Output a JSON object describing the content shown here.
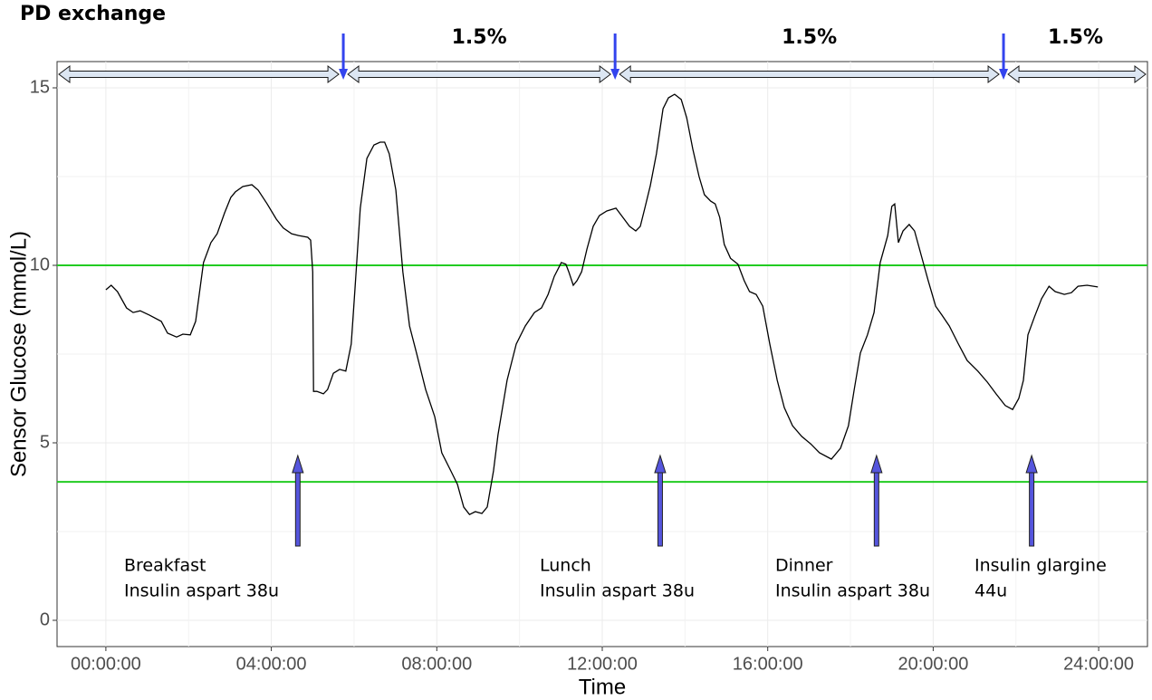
{
  "chart_data": {
    "type": "line",
    "title": "PD exchange",
    "x_label": "Time",
    "y_label": "Sensor Glucose (mmol/L)",
    "xlim": [
      -1.18,
      25.18
    ],
    "ylim": [
      -0.74,
      15.74
    ],
    "xticks": [
      {
        "value": 0,
        "label": "00:00:00"
      },
      {
        "value": 4,
        "label": "04:00:00"
      },
      {
        "value": 8,
        "label": "08:00:00"
      },
      {
        "value": 12,
        "label": "12:00:00"
      },
      {
        "value": 16,
        "label": "16:00:00"
      },
      {
        "value": 20,
        "label": "20:00:00"
      },
      {
        "value": 24,
        "label": "24:00:00"
      }
    ],
    "yticks": [
      0,
      5,
      10,
      15
    ],
    "grid": true,
    "reference_lines": [
      {
        "value": 10,
        "color": "#22cc22"
      },
      {
        "value": 3.9,
        "color": "#22cc22"
      }
    ],
    "pd_exchange": {
      "times": [
        5.74,
        12.31,
        21.7
      ],
      "labels": [
        "1.5%",
        "1.5%",
        "1.5%"
      ],
      "color": "#3344ee"
    },
    "events": [
      {
        "time": 4.64,
        "lines": [
          "Breakfast",
          "Insulin aspart 38u"
        ]
      },
      {
        "time": 13.4,
        "lines": [
          "Lunch",
          "Insulin aspart 38u"
        ]
      },
      {
        "time": 18.63,
        "lines": [
          "Dinner",
          "Insulin aspart 38u"
        ]
      },
      {
        "time": 22.38,
        "lines": [
          "Insulin glargine",
          "44u"
        ]
      }
    ],
    "event_color": "#5555dd",
    "x": [
      0,
      0.13,
      0.28,
      0.5,
      0.66,
      0.83,
      1.05,
      1.34,
      1.49,
      1.71,
      1.86,
      2.04,
      2.17,
      2.36,
      2.54,
      2.69,
      2.87,
      3.02,
      3.13,
      3.31,
      3.53,
      3.68,
      3.9,
      4.12,
      4.29,
      4.49,
      4.66,
      4.88,
      4.95,
      5.0,
      5.02,
      5.1,
      5.26,
      5.36,
      5.5,
      5.65,
      5.8,
      5.93,
      6.02,
      6.15,
      6.31,
      6.48,
      6.63,
      6.74,
      6.85,
      7.01,
      7.18,
      7.34,
      7.51,
      7.73,
      7.95,
      8.12,
      8.34,
      8.5,
      8.65,
      8.79,
      8.93,
      9.09,
      9.22,
      9.37,
      9.48,
      9.7,
      9.92,
      10.14,
      10.36,
      10.53,
      10.69,
      10.84,
      11.01,
      11.12,
      11.19,
      11.3,
      11.39,
      11.5,
      11.63,
      11.78,
      11.93,
      12.11,
      12.33,
      12.5,
      12.66,
      12.81,
      12.92,
      13.03,
      13.16,
      13.31,
      13.47,
      13.6,
      13.75,
      13.91,
      14.04,
      14.19,
      14.34,
      14.47,
      14.62,
      14.73,
      14.84,
      14.95,
      15.1,
      15.28,
      15.43,
      15.56,
      15.72,
      15.88,
      16.05,
      16.23,
      16.4,
      16.6,
      16.82,
      17.04,
      17.25,
      17.54,
      17.76,
      17.95,
      18.09,
      18.24,
      18.41,
      18.57,
      18.72,
      18.9,
      19.0,
      19.07,
      19.16,
      19.27,
      19.42,
      19.55,
      19.71,
      19.88,
      20.06,
      20.21,
      20.39,
      20.61,
      20.82,
      21.08,
      21.31,
      21.52,
      21.74,
      21.92,
      22.07,
      22.18,
      22.29,
      22.45,
      22.62,
      22.8,
      22.95,
      23.17,
      23.34,
      23.5,
      23.72,
      23.98
    ],
    "series": [
      {
        "color": "#000000",
        "values": [
          9.31,
          9.44,
          9.26,
          8.8,
          8.67,
          8.72,
          8.6,
          8.42,
          8.09,
          7.98,
          8.06,
          8.04,
          8.42,
          10.08,
          10.64,
          10.89,
          11.48,
          11.91,
          12.07,
          12.22,
          12.27,
          12.12,
          11.73,
          11.3,
          11.05,
          10.89,
          10.84,
          10.79,
          10.71,
          9.82,
          6.45,
          6.45,
          6.38,
          6.5,
          6.96,
          7.07,
          7.02,
          7.78,
          9.31,
          11.61,
          13.01,
          13.39,
          13.47,
          13.47,
          13.14,
          12.12,
          9.82,
          8.29,
          7.53,
          6.5,
          5.74,
          4.72,
          4.21,
          3.83,
          3.19,
          2.98,
          3.06,
          3.01,
          3.19,
          4.21,
          5.23,
          6.76,
          7.78,
          8.29,
          8.67,
          8.8,
          9.18,
          9.69,
          10.08,
          10.03,
          9.82,
          9.44,
          9.57,
          9.82,
          10.46,
          11.1,
          11.4,
          11.53,
          11.61,
          11.35,
          11.1,
          10.97,
          11.1,
          11.61,
          12.24,
          13.14,
          14.41,
          14.72,
          14.82,
          14.67,
          14.16,
          13.27,
          12.5,
          11.99,
          11.81,
          11.73,
          11.35,
          10.59,
          10.2,
          10.03,
          9.57,
          9.26,
          9.18,
          8.85,
          7.78,
          6.76,
          5.99,
          5.48,
          5.18,
          4.97,
          4.72,
          4.54,
          4.85,
          5.48,
          6.5,
          7.53,
          8.04,
          8.67,
          10.08,
          10.84,
          11.66,
          11.73,
          10.64,
          10.97,
          11.15,
          10.97,
          10.28,
          9.57,
          8.85,
          8.6,
          8.29,
          7.78,
          7.32,
          7.02,
          6.71,
          6.38,
          6.05,
          5.94,
          6.25,
          6.76,
          8.04,
          8.55,
          9.06,
          9.41,
          9.26,
          9.18,
          9.23,
          9.41,
          9.44,
          9.39
        ]
      }
    ]
  }
}
